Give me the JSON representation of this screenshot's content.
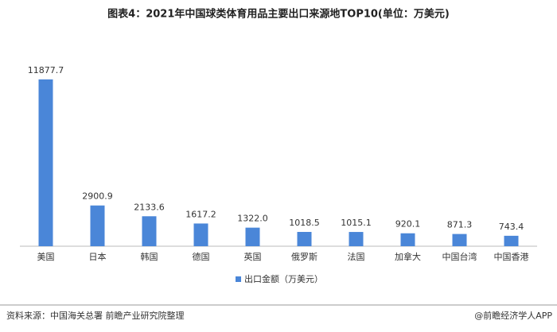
{
  "chart_data": {
    "type": "bar",
    "title": "图表4：2021年中国球类体育用品主要出口来源地TOP10(单位：万美元)",
    "categories": [
      "美国",
      "日本",
      "韩国",
      "德国",
      "英国",
      "俄罗斯",
      "法国",
      "加拿大",
      "中国台湾",
      "中国香港"
    ],
    "series": [
      {
        "name": "出口金额（万美元）",
        "color": "#4a86d8",
        "values": [
          11877.7,
          2900.9,
          2133.6,
          1617.2,
          1322.0,
          1018.5,
          1015.1,
          920.1,
          871.3,
          743.4
        ],
        "value_labels": [
          "11877.7",
          "2900.9",
          "2133.6",
          "1617.2",
          "1322.0",
          "1018.5",
          "1015.1",
          "920.1",
          "871.3",
          "743.4"
        ]
      }
    ],
    "source": "资料来源：中国海关总署 前瞻产业研究院整理",
    "footer": "@前瞻经济学人APP"
  }
}
